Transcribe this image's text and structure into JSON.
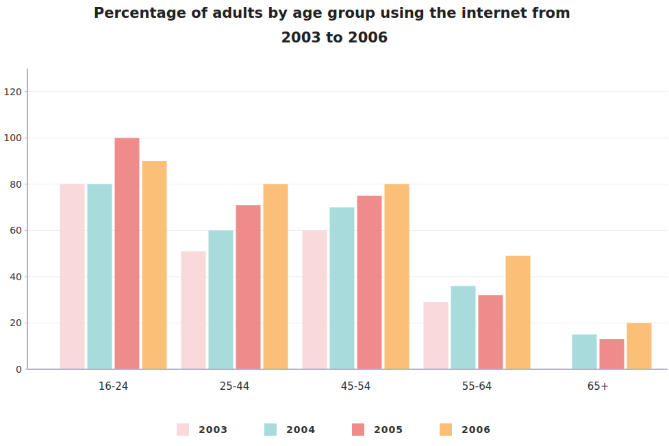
{
  "chart_data": {
    "type": "bar",
    "title": "Percentage of adults by age group using the internet from 2003 to 2006",
    "categories": [
      "16-24",
      "25-44",
      "45-54",
      "55-64",
      "65+"
    ],
    "series": [
      {
        "name": "2003",
        "color": "#f9d9d9",
        "values": [
          80,
          51,
          60,
          29,
          null
        ]
      },
      {
        "name": "2004",
        "color": "#a8dcdc",
        "values": [
          80,
          60,
          70,
          36,
          15
        ]
      },
      {
        "name": "2005",
        "color": "#f08b8b",
        "values": [
          100,
          71,
          75,
          32,
          13
        ]
      },
      {
        "name": "2006",
        "color": "#fbbf77",
        "values": [
          90,
          80,
          80,
          49,
          20
        ]
      }
    ],
    "ylim": [
      0,
      130
    ],
    "yticks": [
      0,
      20,
      40,
      60,
      80,
      100,
      120
    ],
    "grid": true,
    "legend": "bottom"
  }
}
